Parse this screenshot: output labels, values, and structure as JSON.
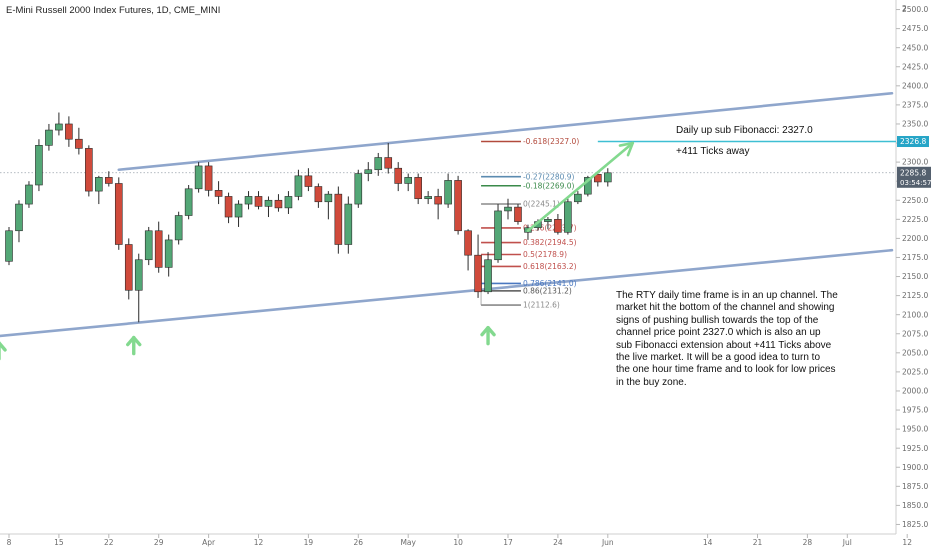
{
  "header": {
    "title": "E-Mini Russell 2000 Index Futures, 1D, CME_MINI"
  },
  "annotations": {
    "target_label": "Daily up sub Fibonacci: 2327.0",
    "ticks_label": "+411 Ticks away",
    "analysis_lines": [
      "The RTY daily time frame is in an up channel. The",
      "market hit the bottom of the channel and showing",
      "signs of pushing bullish towards the top of the",
      "channel price point 2327.0 which is also an up",
      "sub Fibonacci extension about +411 Ticks above",
      "the live market. It will be a good idea to turn to",
      "the one hour time frame and to look for low prices",
      "in the buy zone."
    ]
  },
  "price_axis": {
    "top_label": "2",
    "target_badge": "2326.8",
    "last_price_badge": "2285.8",
    "countdown_badge": "03:54:57"
  },
  "colors": {
    "up_candle": "#53a776",
    "down_candle": "#d04a3b",
    "channel": "#8fa6cc",
    "target_line": "#3ebfd3",
    "arrow": "#83d98f",
    "badge_blue": "#26a5c7",
    "badge_gray": "#54606e"
  },
  "chart_data": {
    "type": "candlestick",
    "title": "E-Mini Russell 2000 Index Futures, 1D, CME_MINI",
    "ylim": [
      1812.5,
      2512.5
    ],
    "y_ticks": [
      1825,
      1850,
      1875,
      1900,
      1925,
      1950,
      1975,
      2000,
      2025,
      2050,
      2075,
      2100,
      2125,
      2150,
      2175,
      2200,
      2225,
      2250,
      2275,
      2300,
      2325,
      2350,
      2375,
      2400,
      2425,
      2450,
      2475,
      2500
    ],
    "x_ticks": [
      {
        "label": "8",
        "slot": 0
      },
      {
        "label": "15",
        "slot": 5
      },
      {
        "label": "22",
        "slot": 10
      },
      {
        "label": "29",
        "slot": 15
      },
      {
        "label": "Apr",
        "slot": 20
      },
      {
        "label": "12",
        "slot": 25
      },
      {
        "label": "19",
        "slot": 30
      },
      {
        "label": "26",
        "slot": 35
      },
      {
        "label": "May",
        "slot": 40
      },
      {
        "label": "10",
        "slot": 45
      },
      {
        "label": "17",
        "slot": 50
      },
      {
        "label": "24",
        "slot": 55
      },
      {
        "label": "Jun",
        "slot": 60
      },
      {
        "label": "14",
        "slot": 70
      },
      {
        "label": "21",
        "slot": 75
      },
      {
        "label": "28",
        "slot": 80
      },
      {
        "label": "Jul",
        "slot": 84
      },
      {
        "label": "12",
        "slot": 90
      }
    ],
    "candles": [
      {
        "slot": 0,
        "o": 2170,
        "h": 2215,
        "l": 2165,
        "c": 2210
      },
      {
        "slot": 1,
        "o": 2210,
        "h": 2250,
        "l": 2195,
        "c": 2245
      },
      {
        "slot": 2,
        "o": 2245,
        "h": 2275,
        "l": 2240,
        "c": 2270
      },
      {
        "slot": 3,
        "o": 2270,
        "h": 2330,
        "l": 2262,
        "c": 2322
      },
      {
        "slot": 4,
        "o": 2322,
        "h": 2350,
        "l": 2315,
        "c": 2342
      },
      {
        "slot": 5,
        "o": 2342,
        "h": 2365,
        "l": 2335,
        "c": 2350
      },
      {
        "slot": 6,
        "o": 2350,
        "h": 2360,
        "l": 2320,
        "c": 2330
      },
      {
        "slot": 7,
        "o": 2330,
        "h": 2345,
        "l": 2310,
        "c": 2318
      },
      {
        "slot": 8,
        "o": 2318,
        "h": 2322,
        "l": 2255,
        "c": 2262
      },
      {
        "slot": 9,
        "o": 2262,
        "h": 2282,
        "l": 2245,
        "c": 2280
      },
      {
        "slot": 10,
        "o": 2280,
        "h": 2288,
        "l": 2268,
        "c": 2272
      },
      {
        "slot": 11,
        "o": 2272,
        "h": 2280,
        "l": 2185,
        "c": 2192
      },
      {
        "slot": 12,
        "o": 2192,
        "h": 2200,
        "l": 2120,
        "c": 2132
      },
      {
        "slot": 13,
        "o": 2132,
        "h": 2180,
        "l": 2090,
        "c": 2172
      },
      {
        "slot": 14,
        "o": 2172,
        "h": 2215,
        "l": 2165,
        "c": 2210
      },
      {
        "slot": 15,
        "o": 2210,
        "h": 2222,
        "l": 2155,
        "c": 2162
      },
      {
        "slot": 16,
        "o": 2162,
        "h": 2205,
        "l": 2150,
        "c": 2198
      },
      {
        "slot": 17,
        "o": 2198,
        "h": 2235,
        "l": 2192,
        "c": 2230
      },
      {
        "slot": 18,
        "o": 2230,
        "h": 2270,
        "l": 2225,
        "c": 2265
      },
      {
        "slot": 19,
        "o": 2265,
        "h": 2300,
        "l": 2260,
        "c": 2295
      },
      {
        "slot": 20,
        "o": 2295,
        "h": 2300,
        "l": 2255,
        "c": 2263
      },
      {
        "slot": 21,
        "o": 2263,
        "h": 2275,
        "l": 2245,
        "c": 2255
      },
      {
        "slot": 22,
        "o": 2255,
        "h": 2260,
        "l": 2220,
        "c": 2228
      },
      {
        "slot": 23,
        "o": 2228,
        "h": 2250,
        "l": 2215,
        "c": 2245
      },
      {
        "slot": 24,
        "o": 2245,
        "h": 2262,
        "l": 2238,
        "c": 2255
      },
      {
        "slot": 25,
        "o": 2255,
        "h": 2262,
        "l": 2238,
        "c": 2242
      },
      {
        "slot": 26,
        "o": 2242,
        "h": 2255,
        "l": 2228,
        "c": 2250
      },
      {
        "slot": 27,
        "o": 2250,
        "h": 2258,
        "l": 2235,
        "c": 2240
      },
      {
        "slot": 28,
        "o": 2240,
        "h": 2262,
        "l": 2232,
        "c": 2255
      },
      {
        "slot": 29,
        "o": 2255,
        "h": 2290,
        "l": 2250,
        "c": 2282
      },
      {
        "slot": 30,
        "o": 2282,
        "h": 2292,
        "l": 2262,
        "c": 2268
      },
      {
        "slot": 31,
        "o": 2268,
        "h": 2272,
        "l": 2240,
        "c": 2248
      },
      {
        "slot": 32,
        "o": 2248,
        "h": 2262,
        "l": 2225,
        "c": 2258
      },
      {
        "slot": 33,
        "o": 2258,
        "h": 2268,
        "l": 2180,
        "c": 2192
      },
      {
        "slot": 34,
        "o": 2192,
        "h": 2255,
        "l": 2180,
        "c": 2245
      },
      {
        "slot": 35,
        "o": 2245,
        "h": 2290,
        "l": 2240,
        "c": 2285
      },
      {
        "slot": 36,
        "o": 2285,
        "h": 2300,
        "l": 2275,
        "c": 2290
      },
      {
        "slot": 37,
        "o": 2290,
        "h": 2312,
        "l": 2282,
        "c": 2306
      },
      {
        "slot": 38,
        "o": 2306,
        "h": 2325,
        "l": 2285,
        "c": 2292
      },
      {
        "slot": 39,
        "o": 2292,
        "h": 2300,
        "l": 2262,
        "c": 2272
      },
      {
        "slot": 40,
        "o": 2272,
        "h": 2285,
        "l": 2262,
        "c": 2280
      },
      {
        "slot": 41,
        "o": 2280,
        "h": 2285,
        "l": 2245,
        "c": 2252
      },
      {
        "slot": 42,
        "o": 2252,
        "h": 2262,
        "l": 2245,
        "c": 2255
      },
      {
        "slot": 43,
        "o": 2255,
        "h": 2265,
        "l": 2225,
        "c": 2245
      },
      {
        "slot": 44,
        "o": 2245,
        "h": 2285,
        "l": 2240,
        "c": 2276
      },
      {
        "slot": 45,
        "o": 2276,
        "h": 2282,
        "l": 2205,
        "c": 2210
      },
      {
        "slot": 46,
        "o": 2210,
        "h": 2212,
        "l": 2158,
        "c": 2178
      },
      {
        "slot": 47,
        "o": 2178,
        "h": 2205,
        "l": 2122,
        "c": 2130
      },
      {
        "slot": 48,
        "o": 2130,
        "h": 2182,
        "l": 2127,
        "c": 2172
      },
      {
        "slot": 49,
        "o": 2172,
        "h": 2245,
        "l": 2168,
        "c": 2236
      },
      {
        "slot": 50,
        "o": 2236,
        "h": 2252,
        "l": 2225,
        "c": 2241
      },
      {
        "slot": 51,
        "o": 2241,
        "h": 2245,
        "l": 2218,
        "c": 2222
      },
      {
        "slot": 52,
        "o": 2208,
        "h": 2218,
        "l": 2198,
        "c": 2214
      },
      {
        "slot": 53,
        "o": 2214,
        "h": 2225,
        "l": 2210,
        "c": 2222
      },
      {
        "slot": 54,
        "o": 2222,
        "h": 2228,
        "l": 2212,
        "c": 2225
      },
      {
        "slot": 55,
        "o": 2225,
        "h": 2232,
        "l": 2205,
        "c": 2208
      },
      {
        "slot": 56,
        "o": 2208,
        "h": 2252,
        "l": 2205,
        "c": 2248
      },
      {
        "slot": 57,
        "o": 2248,
        "h": 2262,
        "l": 2245,
        "c": 2258
      },
      {
        "slot": 58,
        "o": 2258,
        "h": 2282,
        "l": 2255,
        "c": 2280
      },
      {
        "slot": 59,
        "o": 2284,
        "h": 2288,
        "l": 2268,
        "c": 2274
      },
      {
        "slot": 60,
        "o": 2274,
        "h": 2292,
        "l": 2268,
        "c": 2286
      }
    ],
    "channel": {
      "upper": [
        {
          "slot": 11,
          "y": 2290
        },
        {
          "slot": 96,
          "y": 2400
        }
      ],
      "lower": [
        {
          "slot": -1,
          "y": 2072
        },
        {
          "slot": 96,
          "y": 2194
        }
      ]
    },
    "target_line": {
      "y": 2327.0,
      "slot_start": 59
    },
    "fib_levels": [
      {
        "label": "-0.618(2327.0)",
        "y": 2327.0,
        "color": "#b24a3c"
      },
      {
        "label": "-0.27(2280.9)",
        "y": 2280.9,
        "color": "#5b8bb0"
      },
      {
        "label": "-0.18(2269.0)",
        "y": 2269.0,
        "color": "#3a8a4a"
      },
      {
        "label": "0(2245.1)",
        "y": 2245.1,
        "color": "#8a8a8a"
      },
      {
        "label": "0.236(2213.7)",
        "y": 2213.7,
        "color": "#c0504d"
      },
      {
        "label": "0.382(2194.5)",
        "y": 2194.5,
        "color": "#c0504d"
      },
      {
        "label": "0.5(2178.9)",
        "y": 2178.9,
        "color": "#c0504d"
      },
      {
        "label": "0.618(2163.2)",
        "y": 2163.2,
        "color": "#c0504d"
      },
      {
        "label": "0.786(2141.0)",
        "y": 2141.0,
        "color": "#4a78c0"
      },
      {
        "label": "0.86(2131.2)",
        "y": 2131.2,
        "color": "#555555"
      },
      {
        "label": "1(2112.6)",
        "y": 2112.6,
        "color": "#8a8a8a"
      }
    ],
    "up_arrows": [
      {
        "slot": -1,
        "y": 2063
      },
      {
        "slot": 12.5,
        "y": 2070
      },
      {
        "slot": 48,
        "y": 2083
      }
    ],
    "trend_arrow": {
      "from": {
        "slot": 52,
        "y": 2210
      },
      "to": {
        "slot": 62.5,
        "y": 2325
      }
    }
  }
}
